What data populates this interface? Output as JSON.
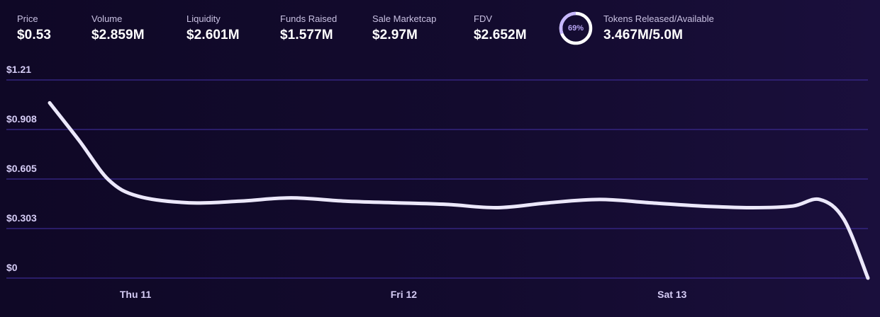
{
  "stats": {
    "price": {
      "label": "Price",
      "value": "$0.53"
    },
    "volume": {
      "label": "Volume",
      "value": "$2.859M"
    },
    "liquidity": {
      "label": "Liquidity",
      "value": "$2.601M"
    },
    "funds_raised": {
      "label": "Funds Raised",
      "value": "$1.577M"
    },
    "sale_marketcap": {
      "label": "Sale Marketcap",
      "value": "$2.97M"
    },
    "fdv": {
      "label": "FDV",
      "value": "$2.652M"
    },
    "tokens": {
      "label": "Tokens Released/Available",
      "value": "3.467M/5.0M",
      "percent_text": "69%",
      "percent": 0.69
    }
  },
  "colors": {
    "background": "#120a2b",
    "line": "#ece8fb",
    "grid": "#3b2a8f",
    "ring_progress": "#c7b8ff",
    "ring_track": "#ffffff"
  },
  "chart_data": {
    "type": "line",
    "title": "",
    "xlabel": "",
    "ylabel": "",
    "ylim": [
      0,
      1.21
    ],
    "y_ticks": [
      "$0",
      "$0.303",
      "$0.605",
      "$0.908",
      "$1.21"
    ],
    "y_tick_values": [
      0,
      0.3025,
      0.605,
      0.9075,
      1.21
    ],
    "x_ticks": [
      "Thu 11",
      "Fri 12",
      "Sat 13"
    ],
    "x_tick_values": [
      11.0,
      12.0,
      13.0
    ],
    "xlim": [
      10.68,
      13.73
    ],
    "grid": true,
    "series": [
      {
        "x": [
          10.68,
          10.79,
          10.9,
          11.01,
          11.2,
          11.39,
          11.58,
          11.78,
          11.97,
          12.16,
          12.35,
          12.54,
          12.73,
          12.92,
          13.11,
          13.3,
          13.45,
          13.55,
          13.64,
          13.73
        ],
        "y": [
          1.07,
          0.84,
          0.6,
          0.5,
          0.46,
          0.47,
          0.49,
          0.47,
          0.46,
          0.45,
          0.43,
          0.46,
          0.48,
          0.46,
          0.44,
          0.43,
          0.44,
          0.48,
          0.36,
          0.0
        ]
      }
    ]
  }
}
